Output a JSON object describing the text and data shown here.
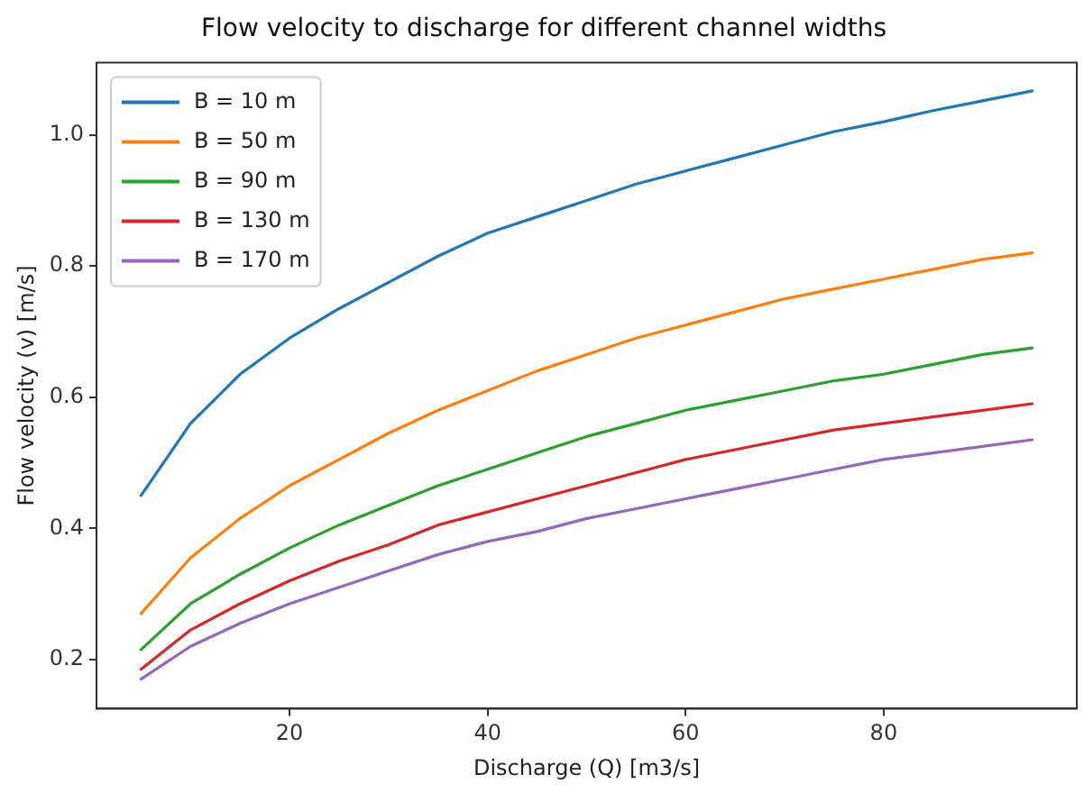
{
  "chart_data": {
    "type": "line",
    "title": "Flow velocity to discharge for different channel widths",
    "xlabel": "Discharge (Q) [m3/s]",
    "ylabel": "Flow velocity (v) [m/s]",
    "x": [
      5,
      10,
      15,
      20,
      25,
      30,
      35,
      40,
      45,
      50,
      55,
      60,
      65,
      70,
      75,
      80,
      85,
      90,
      95
    ],
    "xlim": [
      0.5,
      99.5
    ],
    "xticks": [
      20,
      40,
      60,
      80
    ],
    "ylim": [
      0.125,
      1.11
    ],
    "yticks": [
      0.2,
      0.4,
      0.6,
      0.8,
      {
        "value": 1,
        "label": "1.0"
      }
    ],
    "grid": false,
    "legend": "top left",
    "marker": "none",
    "line_style": "solid",
    "series": [
      {
        "name": "B = 10 m",
        "color": "#1f77b4",
        "values": [
          0.45,
          0.56,
          0.635,
          0.69,
          0.735,
          0.775,
          0.815,
          0.85,
          0.875,
          0.9,
          0.925,
          0.945,
          0.965,
          0.985,
          1.005,
          1.02,
          1.037,
          1.052,
          1.067
        ]
      },
      {
        "name": "B = 50 m",
        "color": "#ff7f0e",
        "values": [
          0.27,
          0.355,
          0.415,
          0.465,
          0.505,
          0.545,
          0.58,
          0.61,
          0.64,
          0.665,
          0.69,
          0.71,
          0.73,
          0.75,
          0.765,
          0.78,
          0.795,
          0.81,
          0.82
        ]
      },
      {
        "name": "B = 90 m",
        "color": "#2ca02c",
        "values": [
          0.215,
          0.285,
          0.33,
          0.37,
          0.405,
          0.435,
          0.465,
          0.49,
          0.515,
          0.54,
          0.56,
          0.58,
          0.595,
          0.61,
          0.625,
          0.635,
          0.65,
          0.665,
          0.675
        ]
      },
      {
        "name": "B = 130 m",
        "color": "#d62728",
        "values": [
          0.185,
          0.245,
          0.285,
          0.32,
          0.35,
          0.375,
          0.405,
          0.425,
          0.445,
          0.465,
          0.485,
          0.505,
          0.52,
          0.535,
          0.55,
          0.56,
          0.57,
          0.58,
          0.59
        ]
      },
      {
        "name": "B = 170 m",
        "color": "#9467bd",
        "values": [
          0.17,
          0.22,
          0.255,
          0.285,
          0.31,
          0.335,
          0.36,
          0.38,
          0.395,
          0.415,
          0.43,
          0.445,
          0.46,
          0.475,
          0.49,
          0.505,
          0.515,
          0.525,
          0.535
        ]
      }
    ]
  }
}
